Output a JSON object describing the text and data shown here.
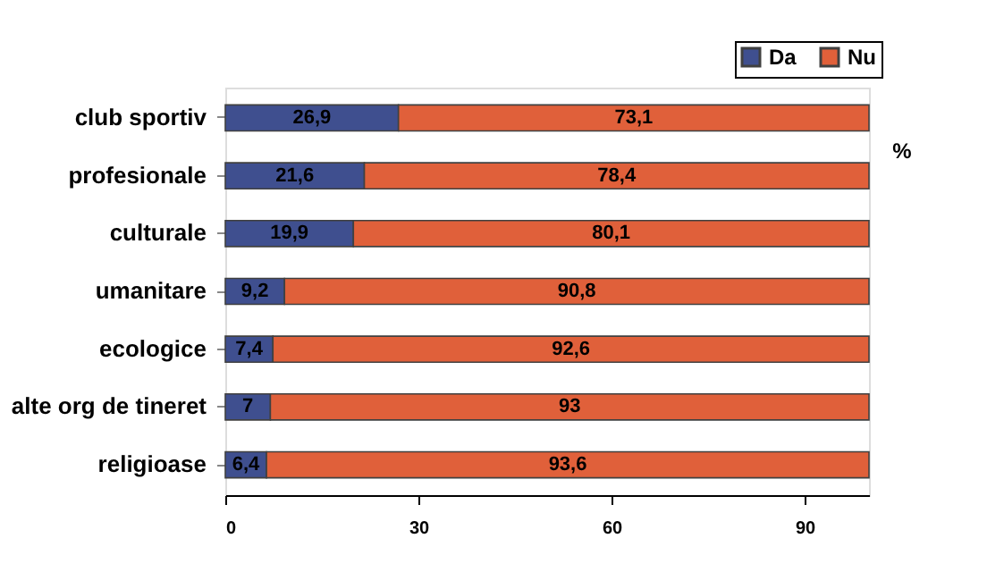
{
  "chart_data": {
    "type": "bar",
    "orientation": "horizontal",
    "stacked": true,
    "categories": [
      "club sportiv",
      "profesionale",
      "culturale",
      "umanitare",
      "ecologice",
      "alte org de tineret",
      "religioase"
    ],
    "series": [
      {
        "name": "Da",
        "color": "#3f4f8f",
        "values": [
          26.9,
          21.6,
          19.9,
          9.2,
          7.4,
          7,
          6.4
        ],
        "value_labels": [
          "26,9",
          "21,6",
          "19,9",
          "9,2",
          "7,4",
          "7",
          "6,4"
        ]
      },
      {
        "name": "Nu",
        "color": "#e0603a",
        "values": [
          73.1,
          78.4,
          80.1,
          90.8,
          92.6,
          93,
          93.6
        ],
        "value_labels": [
          "73,1",
          "78,4",
          "80,1",
          "90,8",
          "92,6",
          "93",
          "93,6"
        ]
      }
    ],
    "xlabel": "%",
    "xlim": [
      0,
      100
    ],
    "xticks": [
      0,
      30,
      60,
      90
    ],
    "grid": false,
    "legend": "top right"
  }
}
